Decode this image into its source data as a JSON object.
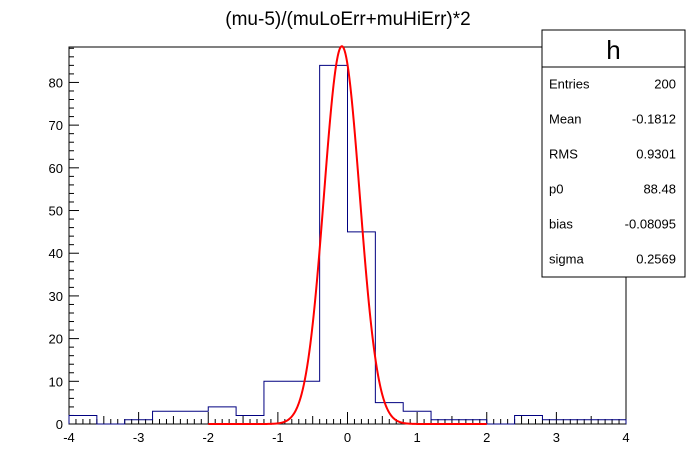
{
  "chart_data": {
    "type": "bar",
    "title": "(mu-5)/(muLoErr+muHiErr)*2",
    "xlabel": "",
    "ylabel": "",
    "xlim": [
      -4,
      4
    ],
    "ylim": [
      0,
      88.3
    ],
    "x_ticks": [
      -4,
      -3,
      -2,
      -1,
      0,
      1,
      2,
      3,
      4
    ],
    "y_ticks": [
      0,
      10,
      20,
      30,
      40,
      50,
      60,
      70,
      80
    ],
    "bin_edges": [
      -4,
      -3.6,
      -3.2,
      -2.8,
      -2.4,
      -2.0,
      -1.6,
      -1.2,
      -0.8,
      -0.4,
      0.0,
      0.4,
      0.8,
      1.2,
      1.6,
      2.0,
      2.4,
      2.8,
      3.2,
      3.6,
      4.0
    ],
    "values": [
      2,
      0,
      1,
      3,
      3,
      4,
      2,
      10,
      10,
      84,
      45,
      5,
      3,
      1,
      1,
      0,
      2,
      1,
      1,
      1
    ],
    "hist_color": "#000080",
    "fit": {
      "function": "gaus",
      "p0": 88.48,
      "bias": -0.08095,
      "sigma": 0.2569,
      "color": "#ff0000"
    },
    "stats_box": {
      "name": "h",
      "rows": [
        {
          "label": "Entries",
          "value": "200"
        },
        {
          "label": "Mean",
          "value": "-0.1812"
        },
        {
          "label": "RMS",
          "value": "0.9301"
        },
        {
          "label": "p0",
          "value": "88.48"
        },
        {
          "label": "bias",
          "value": "-0.08095"
        },
        {
          "label": "sigma",
          "value": "0.2569"
        }
      ]
    },
    "grid": false,
    "legend": "top-right stats box"
  }
}
